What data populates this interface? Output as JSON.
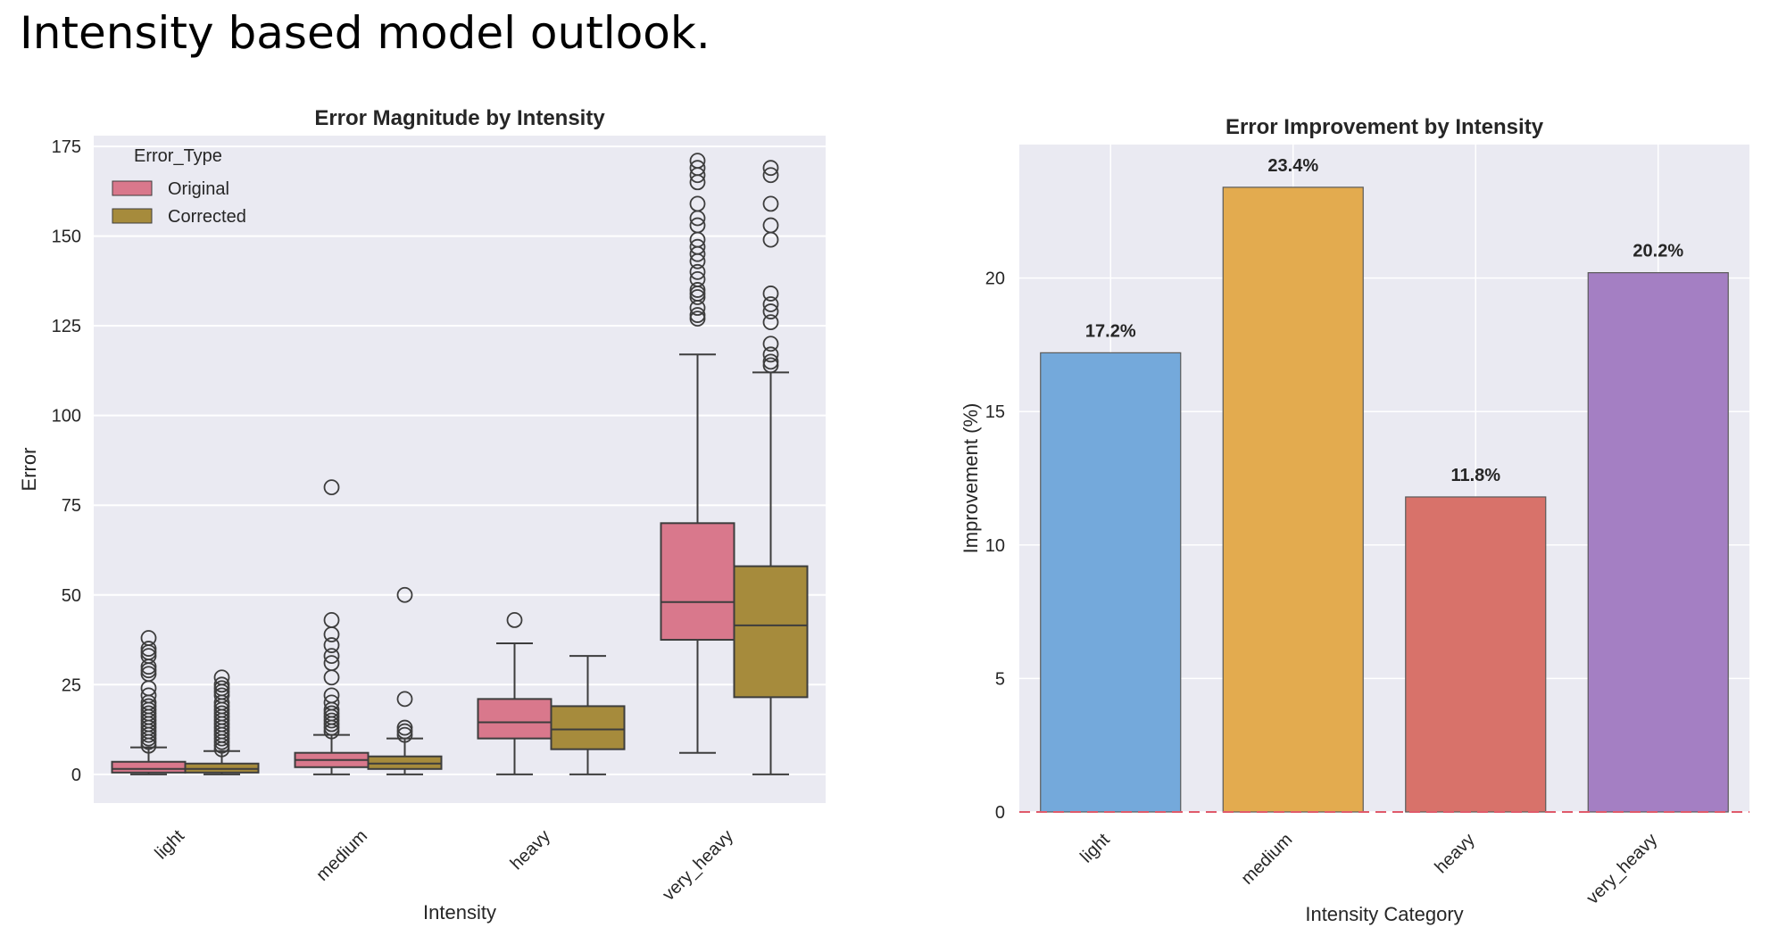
{
  "page": {
    "title": "Intensity based model outlook."
  },
  "chart_data": [
    {
      "type": "box",
      "title": "Error Magnitude by Intensity",
      "xlabel": "Intensity",
      "ylabel": "Error",
      "ylim": [
        -8,
        178
      ],
      "yticks": [
        0,
        25,
        50,
        75,
        100,
        125,
        150,
        175
      ],
      "grid": true,
      "categories": [
        "light",
        "medium",
        "heavy",
        "very_heavy"
      ],
      "legend": {
        "title": "Error_Type",
        "placement": "top-left"
      },
      "series": [
        {
          "name": "Original",
          "color": "#D9788C",
          "boxes": [
            {
              "whisker_low": 0,
              "q1": 0.5,
              "median": 1.5,
              "q3": 3.5,
              "whisker_high": 7.5,
              "outliers": [
                8,
                9,
                10,
                11,
                12,
                13,
                14,
                15,
                16,
                17,
                18,
                19,
                20,
                22,
                24,
                28,
                29,
                30,
                33,
                34,
                35,
                38
              ]
            },
            {
              "whisker_low": 0,
              "q1": 2,
              "median": 4,
              "q3": 6,
              "whisker_high": 11,
              "outliers": [
                12,
                13,
                14,
                15,
                16,
                17,
                18,
                20,
                22,
                27,
                31,
                33,
                36,
                39,
                43,
                80
              ]
            },
            {
              "whisker_low": 0,
              "q1": 10,
              "median": 14.5,
              "q3": 21,
              "whisker_high": 36.5,
              "outliers": [
                43
              ]
            },
            {
              "whisker_low": 6,
              "q1": 37.5,
              "median": 48,
              "q3": 70,
              "whisker_high": 117,
              "outliers": [
                127,
                128,
                130,
                133,
                134,
                135,
                138,
                140,
                143,
                145,
                147,
                149,
                153,
                155,
                159,
                165,
                167,
                169,
                171
              ]
            }
          ]
        },
        {
          "name": "Corrected",
          "color": "#A68B3C",
          "boxes": [
            {
              "whisker_low": 0,
              "q1": 0.5,
              "median": 1.5,
              "q3": 3,
              "whisker_high": 6.5,
              "outliers": [
                7,
                8,
                9,
                10,
                11,
                12,
                13,
                14,
                15,
                16,
                17,
                18,
                19,
                20,
                22,
                23,
                24,
                25,
                27
              ]
            },
            {
              "whisker_low": 0,
              "q1": 1.5,
              "median": 3,
              "q3": 5,
              "whisker_high": 10,
              "outliers": [
                11,
                12,
                13,
                21,
                50
              ]
            },
            {
              "whisker_low": 0,
              "q1": 7,
              "median": 12.5,
              "q3": 19,
              "whisker_high": 33,
              "outliers": []
            },
            {
              "whisker_low": 0,
              "q1": 21.5,
              "median": 41.5,
              "q3": 58,
              "whisker_high": 112,
              "outliers": [
                114,
                115,
                117,
                120,
                126,
                129,
                131,
                134,
                149,
                153,
                159,
                167,
                169
              ]
            }
          ]
        }
      ]
    },
    {
      "type": "bar",
      "title": "Error Improvement by Intensity",
      "xlabel": "Intensity Category",
      "ylabel": "Improvement (%)",
      "ylim": [
        0,
        25
      ],
      "yticks": [
        0,
        5,
        10,
        15,
        20
      ],
      "grid": true,
      "categories": [
        "light",
        "medium",
        "heavy",
        "very_heavy"
      ],
      "values": [
        17.2,
        23.4,
        11.8,
        20.2
      ],
      "data_labels": [
        "17.2%",
        "23.4%",
        "11.8%",
        "20.2%"
      ],
      "colors": [
        "#74A9DB",
        "#E3AB4F",
        "#D8726A",
        "#A47FC3"
      ],
      "reference_line": {
        "y": 0,
        "color": "#E05A6A",
        "style": "dashed"
      }
    }
  ]
}
